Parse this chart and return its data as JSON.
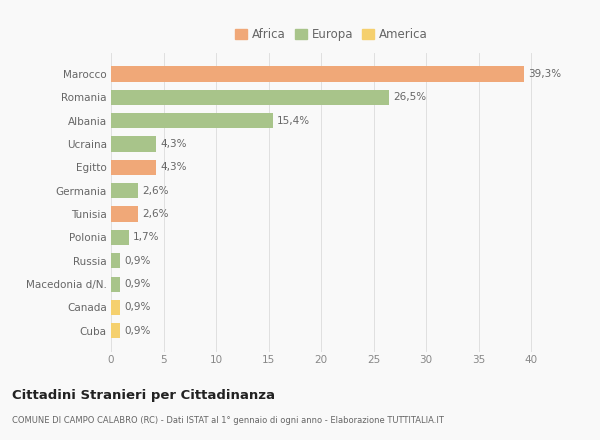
{
  "categories": [
    "Marocco",
    "Romania",
    "Albania",
    "Ucraina",
    "Egitto",
    "Germania",
    "Tunisia",
    "Polonia",
    "Russia",
    "Macedonia d/N.",
    "Canada",
    "Cuba"
  ],
  "values": [
    39.3,
    26.5,
    15.4,
    4.3,
    4.3,
    2.6,
    2.6,
    1.7,
    0.9,
    0.9,
    0.9,
    0.9
  ],
  "labels": [
    "39,3%",
    "26,5%",
    "15,4%",
    "4,3%",
    "4,3%",
    "2,6%",
    "2,6%",
    "1,7%",
    "0,9%",
    "0,9%",
    "0,9%",
    "0,9%"
  ],
  "colors": [
    "#f0a878",
    "#a8c48a",
    "#a8c48a",
    "#a8c48a",
    "#f0a878",
    "#a8c48a",
    "#f0a878",
    "#a8c48a",
    "#a8c48a",
    "#a8c48a",
    "#f5d06e",
    "#f5d06e"
  ],
  "legend_labels": [
    "Africa",
    "Europa",
    "America"
  ],
  "legend_colors": [
    "#f0a878",
    "#a8c48a",
    "#f5d06e"
  ],
  "title": "Cittadini Stranieri per Cittadinanza",
  "subtitle": "COMUNE DI CAMPO CALABRO (RC) - Dati ISTAT al 1° gennaio di ogni anno - Elaborazione TUTTITALIA.IT",
  "xlim": [
    0,
    42
  ],
  "xticks": [
    0,
    5,
    10,
    15,
    20,
    25,
    30,
    35,
    40
  ],
  "bg_color": "#f9f9f9",
  "grid_color": "#e0e0e0"
}
